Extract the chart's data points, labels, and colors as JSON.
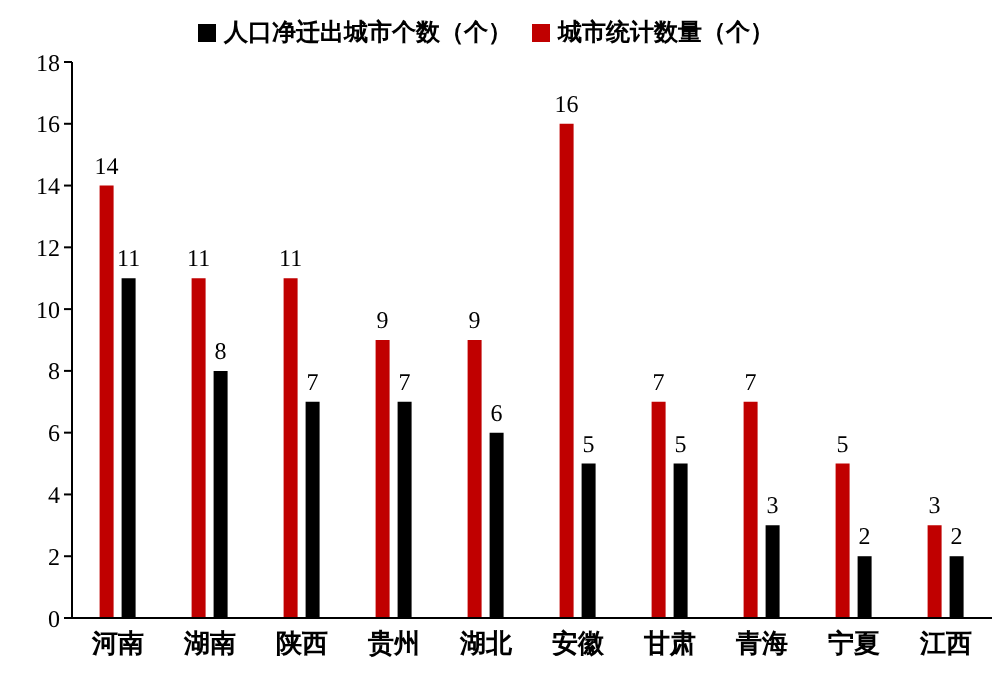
{
  "chart_data": {
    "type": "bar",
    "categories": [
      "河南",
      "湖南",
      "陕西",
      "贵州",
      "湖北",
      "安徽",
      "甘肃",
      "青海",
      "宁夏",
      "江西"
    ],
    "series": [
      {
        "name": "城市统计数量（个）",
        "color": "#c00000",
        "values": [
          14,
          11,
          11,
          9,
          9,
          16,
          7,
          7,
          5,
          3
        ]
      },
      {
        "name": "人口净迁出城市个数（个）",
        "color": "#000000",
        "values": [
          11,
          8,
          7,
          7,
          6,
          5,
          5,
          3,
          2,
          2
        ]
      }
    ],
    "ylim": [
      0,
      18
    ],
    "yticks": [
      0,
      2,
      4,
      6,
      8,
      10,
      12,
      14,
      16,
      18
    ],
    "grid": false,
    "legend": "top",
    "data_labels": true
  }
}
